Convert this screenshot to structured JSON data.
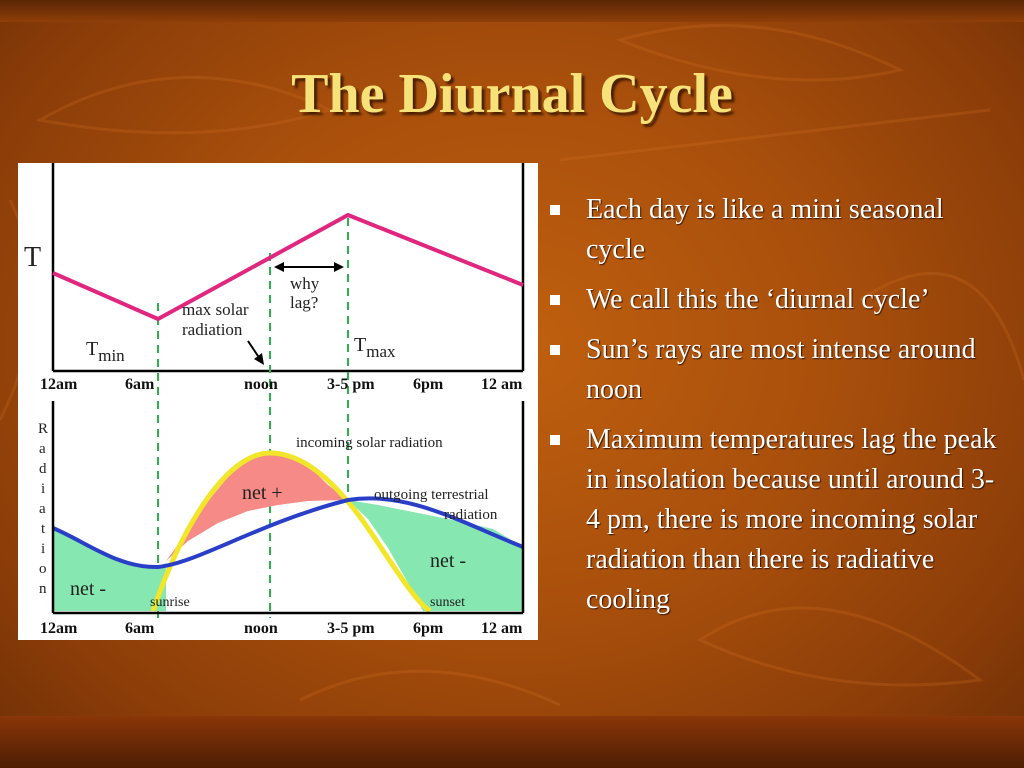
{
  "slide": {
    "title": "The Diurnal Cycle"
  },
  "bullets": [
    "Each day is like a mini seasonal cycle",
    "We call this the ‘diurnal cycle’",
    "Sun’s rays are most intense around noon",
    "Maximum temperatures lag the peak in insolation because until around 3-4 pm, there is more incoming solar radiation than there is radiative cooling"
  ],
  "figure": {
    "top_panel": {
      "y_label": "T",
      "x_ticks": [
        "12am",
        "6am",
        "noon",
        "3-5 pm",
        "6pm",
        "12 am"
      ],
      "annotations": {
        "max_solar_line1": "max solar",
        "max_solar_line2": "radiation",
        "why_line1": "why",
        "why_line2": "lag?",
        "tmin_base": "T",
        "tmin_sub": "min",
        "tmax_base": "T",
        "tmax_sub": "max"
      }
    },
    "bottom_panel": {
      "y_label_letters": [
        "R",
        "a",
        "d",
        "i",
        "a",
        "t",
        "i",
        "o",
        "n"
      ],
      "x_ticks": [
        "12am",
        "6am",
        "noon",
        "3-5 pm",
        "6pm",
        "12 am"
      ],
      "annotations": {
        "incoming": "incoming solar radiation",
        "outgoing_line1": "outgoing terrestrial",
        "outgoing_line2": "radiation",
        "net_plus": "net +",
        "net_minus_left": "net -",
        "net_minus_right": "net -",
        "sunrise": "sunrise",
        "sunset": "sunset"
      }
    },
    "colors": {
      "temperature_curve": "#e0267e",
      "incoming_curve": "#f2e62a",
      "outgoing_curve": "#2a3fc8",
      "net_positive_fill": "#f58a86",
      "net_negative_fill": "#86e8b0",
      "guide_lines": "#2bb24a"
    }
  }
}
